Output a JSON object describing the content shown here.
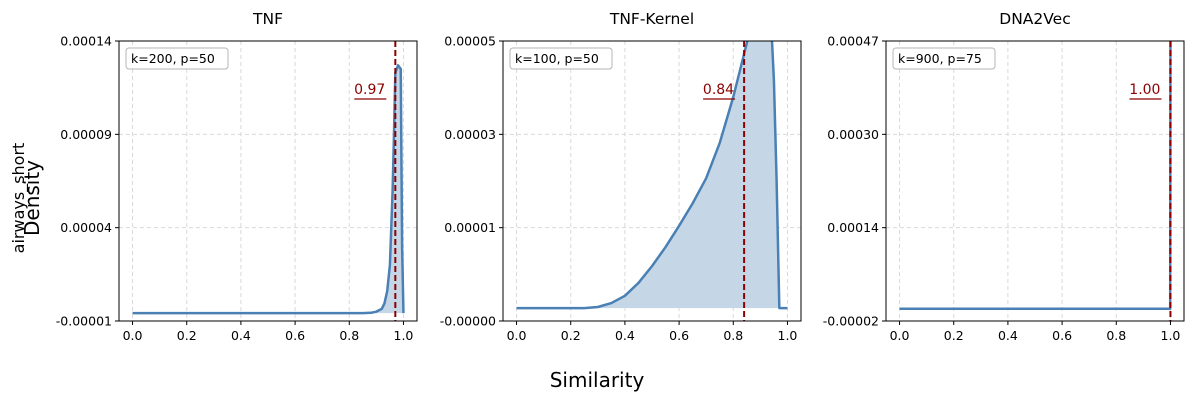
{
  "figure": {
    "supxlabel": "Similarity",
    "supylabel": "Density",
    "row_label": "airways_short"
  },
  "chart_data": [
    {
      "type": "area",
      "title": "TNF",
      "annotation": "k=200, p=50",
      "xlim": [
        -0.05,
        1.05
      ],
      "ylim": [
        -1e-05,
        0.00014
      ],
      "xticks": [
        "0.0",
        "0.2",
        "0.4",
        "0.6",
        "0.8",
        "1.0"
      ],
      "yticks": [
        "-0.00001",
        "0.00004",
        "0.00009",
        "0.00014"
      ],
      "vline": {
        "x": 0.97,
        "label": "0.97"
      },
      "series": [
        {
          "x": [
            0.0,
            0.85,
            0.88,
            0.9,
            0.92,
            0.93,
            0.94,
            0.95,
            0.96,
            0.965,
            0.97,
            0.98,
            0.985,
            0.99,
            0.995,
            1.0
          ],
          "y": [
            -5.8e-06,
            -5.8e-06,
            -5.6e-06,
            -5e-06,
            -3.5e-06,
            -5e-07,
            6e-06,
            2e-05,
            6e-05,
            9e-05,
            0.000123,
            0.000127,
            0.000126,
            0.000125,
            3e-05,
            -5.8e-06
          ]
        }
      ]
    },
    {
      "type": "area",
      "title": "TNF-Kernel",
      "annotation": "k=100, p=50",
      "xlim": [
        -0.05,
        1.05
      ],
      "ylim": [
        -0.0,
        5e-05
      ],
      "xticks": [
        "0.0",
        "0.2",
        "0.4",
        "0.6",
        "0.8",
        "1.0"
      ],
      "yticks": [
        "-0.00000",
        "0.00001",
        "0.00003",
        "0.00005"
      ],
      "vline": {
        "x": 0.84,
        "label": "0.84"
      },
      "series": [
        {
          "x": [
            0.0,
            0.25,
            0.3,
            0.35,
            0.4,
            0.45,
            0.5,
            0.55,
            0.6,
            0.65,
            0.7,
            0.75,
            0.8,
            0.84,
            0.87,
            0.89,
            0.91,
            0.92,
            0.93,
            0.94,
            0.95,
            0.96,
            0.97,
            1.0
          ],
          "y": [
            2.3e-06,
            2.3e-06,
            2.5e-06,
            3.2e-06,
            4.5e-06,
            6.8e-06,
            9.8e-06,
            1.32e-05,
            1.7e-05,
            2.1e-05,
            2.55e-05,
            3.18e-05,
            4e-05,
            4.77e-05,
            5.35e-05,
            5.63e-05,
            5.88e-05,
            5.95e-05,
            5.8e-05,
            5.3e-05,
            4.3e-05,
            2.5e-05,
            2.3e-06,
            2.3e-06
          ]
        }
      ]
    },
    {
      "type": "area",
      "title": "DNA2Vec",
      "annotation": "k=900, p=75",
      "xlim": [
        -0.05,
        1.05
      ],
      "ylim": [
        -2e-05,
        0.00047
      ],
      "xticks": [
        "0.0",
        "0.2",
        "0.4",
        "0.6",
        "0.8",
        "1.0"
      ],
      "yticks": [
        "-0.00002",
        "0.00014",
        "0.00030",
        "0.00047"
      ],
      "vline": {
        "x": 1.0,
        "label": "1.00"
      },
      "series": [
        {
          "x": [
            0.0,
            0.995,
            0.998,
            0.999,
            1.0
          ],
          "y": [
            1.4e-06,
            1.4e-06,
            1.4e-06,
            1.4e-06,
            0.00047
          ]
        }
      ]
    }
  ],
  "style": {
    "line_color": "#4a80b4",
    "fill_color": "#c5d7e7",
    "vline_color": "#8b0000",
    "grid_color": "#d9d9d9"
  }
}
